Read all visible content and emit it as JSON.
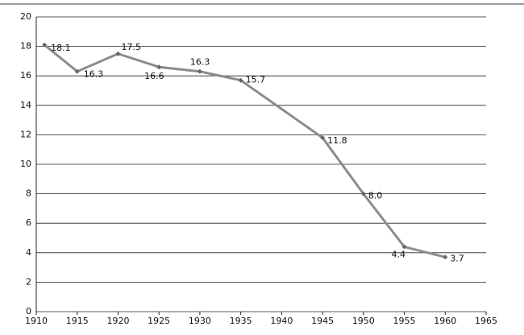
{
  "chart_data": {
    "type": "line",
    "x": [
      1911,
      1915,
      1920,
      1925,
      1930,
      1935,
      1945,
      1950,
      1955,
      1960
    ],
    "series": [
      {
        "color": "#8c8c8c",
        "values": [
          18.1,
          16.3,
          17.5,
          16.6,
          16.3,
          15.7,
          11.8,
          8.0,
          4.4,
          3.7
        ],
        "value_labels": [
          "18.1",
          "16.3",
          "17.5",
          "16.6",
          "16.3",
          "15.7",
          "11.8",
          "8.0",
          "4.4",
          "3.7"
        ]
      }
    ],
    "xlim": [
      1910,
      1965
    ],
    "xticks": [
      1910,
      1915,
      1920,
      1925,
      1930,
      1935,
      1940,
      1945,
      1950,
      1955,
      1960,
      1965
    ],
    "ylim": [
      0,
      20
    ],
    "yticks": [
      0,
      2,
      4,
      6,
      8,
      10,
      12,
      14,
      16,
      18,
      20
    ],
    "grid": true
  }
}
